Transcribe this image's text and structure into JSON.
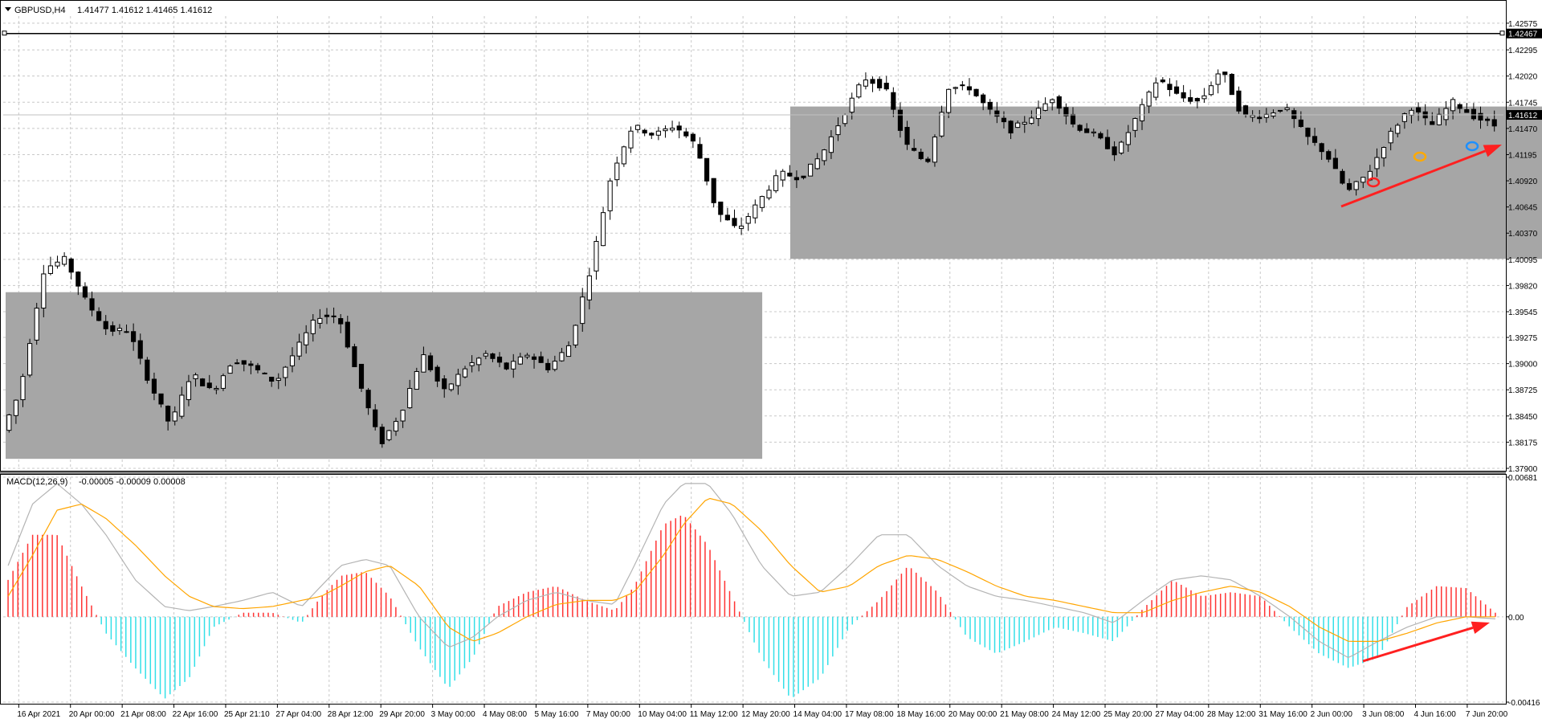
{
  "header": {
    "symbol_label": "GBPUSD,H4",
    "ohlc_values": "1.41477 1.41612 1.41465 1.41612"
  },
  "macd_panel": {
    "title": "MACD(12,26,9)",
    "values": "-0.00005 -0.00009 0.00008"
  },
  "colors": {
    "grid": "#c8c8c8",
    "candle_body_bull": "#ffffff",
    "candle_body_bear": "#000000",
    "range_box": "#a6a6a6",
    "macd_positive_bar": "#ff3333",
    "macd_negative_bar": "#33e0e8",
    "macd_main_line": "#b4b4b4",
    "macd_signal_line": "#ffa500",
    "arrow": "#ff2020",
    "marker_red": "#ff2020",
    "marker_orange": "#ffaa00",
    "marker_blue": "#1e90ff"
  },
  "chart_data": [
    {
      "type": "candlestick",
      "symbol": "GBPUSD",
      "timeframe": "H4",
      "price_ticks": [
        "1.42575",
        "1.42295",
        "1.42020",
        "1.41745",
        "1.41470",
        "1.41195",
        "1.40920",
        "1.40645",
        "1.40370",
        "1.40095",
        "1.39820",
        "1.39545",
        "1.39275",
        "1.39000",
        "1.38725",
        "1.38450",
        "1.38175",
        "1.37900"
      ],
      "ylim": [
        1.379,
        1.4265
      ],
      "resistance_line": {
        "price": 1.42467,
        "label": "1.42467"
      },
      "current_price": {
        "price": 1.41612,
        "label": "1.41612"
      },
      "range_boxes": [
        {
          "price_top": 1.3975,
          "price_bottom": 1.38,
          "bar_start": 0,
          "bar_end": 216
        },
        {
          "price_top": 1.417,
          "price_bottom": 1.401,
          "bar_start": 224,
          "bar_end": 536
        }
      ],
      "x_labels": [
        "16 Apr 2021",
        "20 Apr 00:00",
        "21 Apr 08:00",
        "22 Apr 16:00",
        "25 Apr 21:10",
        "27 Apr 04:00",
        "28 Apr 12:00",
        "29 Apr 20:00",
        "3 May 00:00",
        "4 May 08:00",
        "5 May 16:00",
        "7 May 00:00",
        "10 May 04:00",
        "11 May 12:00",
        "12 May 20:00",
        "14 May 04:00",
        "17 May 08:00",
        "18 May 16:00",
        "20 May 00:00",
        "21 May 08:00",
        "24 May 12:00",
        "25 May 20:00",
        "27 May 04:00",
        "28 May 12:00",
        "31 May 16:00",
        "2 Jun 00:00",
        "3 Jun 08:00",
        "4 Jun 16:00",
        "7 Jun 20:00"
      ],
      "candle_count": 216,
      "anchors": [
        [
          0,
          1.383
        ],
        [
          5,
          1.387
        ],
        [
          12,
          1.4
        ],
        [
          18,
          1.401
        ],
        [
          24,
          1.3965
        ],
        [
          30,
          1.3935
        ],
        [
          36,
          1.3935
        ],
        [
          42,
          1.388
        ],
        [
          48,
          1.3835
        ],
        [
          54,
          1.389
        ],
        [
          60,
          1.387
        ],
        [
          66,
          1.3905
        ],
        [
          72,
          1.3895
        ],
        [
          78,
          1.388
        ],
        [
          84,
          1.3915
        ],
        [
          90,
          1.395
        ],
        [
          96,
          1.395
        ],
        [
          102,
          1.388
        ],
        [
          108,
          1.3815
        ],
        [
          114,
          1.385
        ],
        [
          120,
          1.391
        ],
        [
          126,
          1.387
        ],
        [
          132,
          1.3895
        ],
        [
          138,
          1.391
        ],
        [
          144,
          1.3895
        ],
        [
          150,
          1.391
        ],
        [
          156,
          1.3895
        ],
        [
          162,
          1.392
        ],
        [
          168,
          1.4
        ],
        [
          174,
          1.41
        ],
        [
          180,
          1.415
        ],
        [
          186,
          1.414
        ],
        [
          192,
          1.415
        ],
        [
          198,
          1.413
        ],
        [
          204,
          1.406
        ],
        [
          210,
          1.404
        ],
        [
          216,
          1.407
        ],
        [
          222,
          1.41
        ],
        [
          228,
          1.4095
        ],
        [
          234,
          1.412
        ],
        [
          240,
          1.416
        ],
        [
          246,
          1.42
        ],
        [
          252,
          1.419
        ],
        [
          258,
          1.413
        ],
        [
          264,
          1.411
        ],
        [
          270,
          1.419
        ],
        [
          276,
          1.419
        ],
        [
          282,
          1.4165
        ],
        [
          288,
          1.4145
        ],
        [
          294,
          1.416
        ],
        [
          300,
          1.418
        ],
        [
          306,
          1.415
        ],
        [
          312,
          1.414
        ],
        [
          318,
          1.412
        ],
        [
          324,
          1.416
        ],
        [
          330,
          1.42
        ],
        [
          336,
          1.418
        ],
        [
          342,
          1.4175
        ],
        [
          348,
          1.421
        ],
        [
          354,
          1.416
        ],
        [
          360,
          1.416
        ],
        [
          366,
          1.417
        ],
        [
          372,
          1.414
        ],
        [
          378,
          1.412
        ],
        [
          384,
          1.408
        ],
        [
          390,
          1.41
        ],
        [
          396,
          1.414
        ],
        [
          402,
          1.417
        ],
        [
          408,
          1.415
        ],
        [
          414,
          1.4175
        ],
        [
          420,
          1.416
        ],
        [
          426,
          1.415
        ]
      ],
      "vertical_grid_labels_count": 29
    },
    {
      "type": "macd",
      "params": "12,26,9",
      "y_ticks": [
        "0.00681",
        "0.00",
        "-0.00416"
      ],
      "ylim": [
        -0.00416,
        0.00681
      ],
      "histogram_anchors": [
        [
          0,
          0.0018
        ],
        [
          5,
          0.004
        ],
        [
          10,
          0.004
        ],
        [
          15,
          0.0015
        ],
        [
          20,
          -0.0008
        ],
        [
          26,
          -0.0025
        ],
        [
          32,
          -0.004
        ],
        [
          37,
          -0.003
        ],
        [
          42,
          -0.0005
        ],
        [
          48,
          0.0002
        ],
        [
          54,
          0.0002
        ],
        [
          60,
          -0.0003
        ],
        [
          64,
          0.001
        ],
        [
          68,
          0.002
        ],
        [
          73,
          0.0022
        ],
        [
          78,
          0.001
        ],
        [
          84,
          -0.0015
        ],
        [
          90,
          -0.0035
        ],
        [
          95,
          -0.002
        ],
        [
          100,
          0.0005
        ],
        [
          106,
          0.0012
        ],
        [
          112,
          0.0015
        ],
        [
          118,
          0.0008
        ],
        [
          124,
          0.0003
        ],
        [
          128,
          0.0015
        ],
        [
          134,
          0.0045
        ],
        [
          138,
          0.005
        ],
        [
          143,
          0.0035
        ],
        [
          148,
          0.001
        ],
        [
          154,
          -0.002
        ],
        [
          160,
          -0.004
        ],
        [
          166,
          -0.003
        ],
        [
          172,
          -0.0005
        ],
        [
          178,
          0.0008
        ],
        [
          184,
          0.0025
        ],
        [
          190,
          0.0012
        ],
        [
          196,
          -0.001
        ],
        [
          202,
          -0.0018
        ],
        [
          208,
          -0.0012
        ],
        [
          214,
          -0.0005
        ],
        [
          220,
          -0.0008
        ],
        [
          226,
          -0.0012
        ],
        [
          232,
          0.0004
        ],
        [
          238,
          0.0018
        ],
        [
          244,
          0.001
        ],
        [
          250,
          0.0012
        ],
        [
          256,
          0.001
        ],
        [
          262,
          -0.0005
        ],
        [
          268,
          -0.0018
        ],
        [
          274,
          -0.0025
        ],
        [
          280,
          -0.002
        ],
        [
          286,
          0.0005
        ],
        [
          292,
          0.0015
        ],
        [
          298,
          0.0014
        ],
        [
          304,
          0.0002
        ]
      ],
      "main_anchors": [
        [
          0,
          0.0025
        ],
        [
          5,
          0.0055
        ],
        [
          10,
          0.0065
        ],
        [
          15,
          0.0055
        ],
        [
          20,
          0.004
        ],
        [
          26,
          0.0018
        ],
        [
          32,
          0.0005
        ],
        [
          37,
          0.0003
        ],
        [
          42,
          0.0005
        ],
        [
          48,
          0.0008
        ],
        [
          54,
          0.0012
        ],
        [
          60,
          0.0005
        ],
        [
          64,
          0.0015
        ],
        [
          68,
          0.0025
        ],
        [
          73,
          0.0028
        ],
        [
          78,
          0.0025
        ],
        [
          84,
          0.0
        ],
        [
          90,
          -0.0015
        ],
        [
          95,
          -0.001
        ],
        [
          100,
          0.0
        ],
        [
          106,
          0.0008
        ],
        [
          112,
          0.0012
        ],
        [
          118,
          0.0008
        ],
        [
          124,
          0.0006
        ],
        [
          128,
          0.0025
        ],
        [
          134,
          0.0055
        ],
        [
          138,
          0.0065
        ],
        [
          143,
          0.0065
        ],
        [
          148,
          0.005
        ],
        [
          154,
          0.0025
        ],
        [
          160,
          0.001
        ],
        [
          166,
          0.0012
        ],
        [
          172,
          0.0025
        ],
        [
          178,
          0.004
        ],
        [
          184,
          0.004
        ],
        [
          190,
          0.0025
        ],
        [
          196,
          0.0015
        ],
        [
          202,
          0.001
        ],
        [
          208,
          0.0008
        ],
        [
          214,
          0.0005
        ],
        [
          220,
          0.0002
        ],
        [
          226,
          -0.0003
        ],
        [
          232,
          0.0008
        ],
        [
          238,
          0.0018
        ],
        [
          244,
          0.002
        ],
        [
          250,
          0.0018
        ],
        [
          256,
          0.001
        ],
        [
          262,
          0.0
        ],
        [
          268,
          -0.0012
        ],
        [
          274,
          -0.002
        ],
        [
          280,
          -0.0012
        ],
        [
          286,
          -0.0005
        ],
        [
          292,
          0.0
        ],
        [
          298,
          0.0
        ],
        [
          304,
          -0.0001
        ]
      ],
      "signal_anchors": [
        [
          0,
          0.001
        ],
        [
          5,
          0.003
        ],
        [
          10,
          0.0052
        ],
        [
          15,
          0.0055
        ],
        [
          20,
          0.0048
        ],
        [
          26,
          0.0035
        ],
        [
          32,
          0.002
        ],
        [
          37,
          0.001
        ],
        [
          42,
          0.0005
        ],
        [
          48,
          0.0004
        ],
        [
          54,
          0.0005
        ],
        [
          60,
          0.0008
        ],
        [
          64,
          0.001
        ],
        [
          68,
          0.0015
        ],
        [
          73,
          0.0022
        ],
        [
          78,
          0.0025
        ],
        [
          84,
          0.0015
        ],
        [
          90,
          -0.0005
        ],
        [
          95,
          -0.0012
        ],
        [
          100,
          -0.0008
        ],
        [
          106,
          0.0
        ],
        [
          112,
          0.0006
        ],
        [
          118,
          0.0008
        ],
        [
          124,
          0.0008
        ],
        [
          128,
          0.0012
        ],
        [
          134,
          0.003
        ],
        [
          138,
          0.0045
        ],
        [
          143,
          0.0058
        ],
        [
          148,
          0.0055
        ],
        [
          154,
          0.0042
        ],
        [
          160,
          0.0025
        ],
        [
          166,
          0.0012
        ],
        [
          172,
          0.0015
        ],
        [
          178,
          0.0025
        ],
        [
          184,
          0.003
        ],
        [
          190,
          0.0028
        ],
        [
          196,
          0.0022
        ],
        [
          202,
          0.0015
        ],
        [
          208,
          0.001
        ],
        [
          214,
          0.0008
        ],
        [
          220,
          0.0005
        ],
        [
          226,
          0.0002
        ],
        [
          232,
          0.0002
        ],
        [
          238,
          0.0008
        ],
        [
          244,
          0.0012
        ],
        [
          250,
          0.0015
        ],
        [
          256,
          0.0012
        ],
        [
          262,
          0.0005
        ],
        [
          268,
          -0.0005
        ],
        [
          274,
          -0.0012
        ],
        [
          280,
          -0.0012
        ],
        [
          286,
          -0.0008
        ],
        [
          292,
          -0.0003
        ],
        [
          298,
          0.0
        ],
        [
          304,
          0.0
        ]
      ]
    }
  ]
}
